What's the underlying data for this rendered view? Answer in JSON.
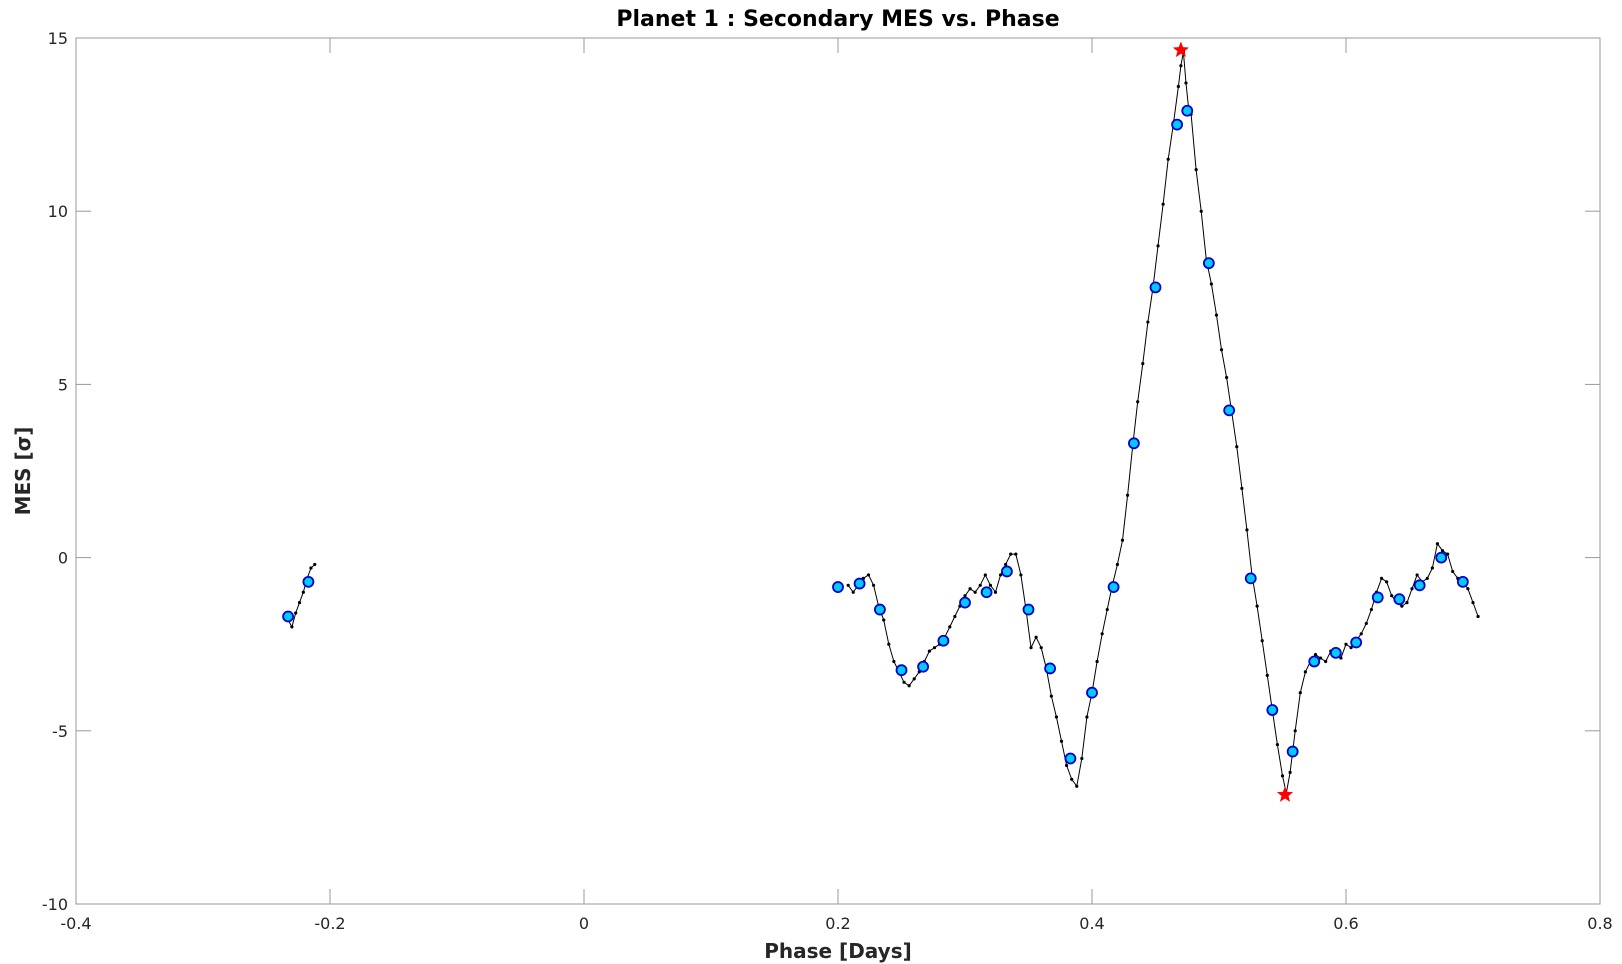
{
  "chart_data": {
    "type": "scatter",
    "title": "Planet 1 : Secondary MES vs. Phase",
    "xlabel": "Phase [Days]",
    "ylabel": "MES [σ]",
    "xlim": [
      -0.4,
      0.8
    ],
    "ylim": [
      -10,
      15
    ],
    "x_ticks": [
      -0.4,
      -0.2,
      0,
      0.2,
      0.4,
      0.6,
      0.8
    ],
    "x_tick_labels": [
      "-0.4",
      "-0.2",
      "0",
      "0.2",
      "0.4",
      "0.6",
      "0.8"
    ],
    "y_ticks": [
      -10,
      -5,
      0,
      5,
      10,
      15
    ],
    "y_tick_labels": [
      "-10",
      "-5",
      "0",
      "5",
      "10",
      "15"
    ],
    "grid": false,
    "colors": {
      "line": "#000000",
      "marker_fill": "#00ccff",
      "marker_edge": "#0000cc",
      "star": "#ff0000",
      "axes": "#999999"
    },
    "series": [
      {
        "role": "line-segment-1",
        "x": [
          -0.233,
          -0.23,
          -0.227,
          -0.224,
          -0.221,
          -0.218,
          -0.215,
          -0.212
        ],
        "y": [
          -1.8,
          -2.0,
          -1.6,
          -1.3,
          -1.0,
          -0.6,
          -0.3,
          -0.2
        ]
      },
      {
        "role": "line-segment-2",
        "x": [
          0.208,
          0.212,
          0.216,
          0.22,
          0.224,
          0.228,
          0.232,
          0.236,
          0.24,
          0.244,
          0.248,
          0.252,
          0.256,
          0.26,
          0.264,
          0.268,
          0.272,
          0.276,
          0.28,
          0.284,
          0.288,
          0.292,
          0.296,
          0.3,
          0.304,
          0.308,
          0.312,
          0.316,
          0.32,
          0.324,
          0.328,
          0.332,
          0.336,
          0.34,
          0.344,
          0.348,
          0.352,
          0.356,
          0.36,
          0.364,
          0.368,
          0.372,
          0.376,
          0.38,
          0.384,
          0.388,
          0.392,
          0.396,
          0.4,
          0.404,
          0.408,
          0.412,
          0.416,
          0.42,
          0.424,
          0.428,
          0.432,
          0.436,
          0.44,
          0.444,
          0.448,
          0.452,
          0.456,
          0.46,
          0.464,
          0.468,
          0.47,
          0.472,
          0.474,
          0.476,
          0.478,
          0.482,
          0.486,
          0.49,
          0.494,
          0.498,
          0.502,
          0.506,
          0.51,
          0.514,
          0.518,
          0.522,
          0.526,
          0.53,
          0.534,
          0.538,
          0.542,
          0.546,
          0.55,
          0.553,
          0.556,
          0.56,
          0.564,
          0.568,
          0.572,
          0.576,
          0.58,
          0.584,
          0.588,
          0.592,
          0.596,
          0.6,
          0.604,
          0.608,
          0.612,
          0.616,
          0.62,
          0.624,
          0.628,
          0.632,
          0.636,
          0.64,
          0.644,
          0.648,
          0.652,
          0.656,
          0.66,
          0.664,
          0.668,
          0.672,
          0.676,
          0.68,
          0.684,
          0.688,
          0.692,
          0.696,
          0.7,
          0.704
        ],
        "y": [
          -0.8,
          -1.0,
          -0.8,
          -0.6,
          -0.5,
          -0.8,
          -1.4,
          -1.8,
          -2.5,
          -3.0,
          -3.3,
          -3.6,
          -3.7,
          -3.5,
          -3.3,
          -3.0,
          -2.7,
          -2.6,
          -2.5,
          -2.3,
          -2.0,
          -1.7,
          -1.4,
          -1.1,
          -0.9,
          -1.0,
          -0.8,
          -0.5,
          -0.8,
          -1.0,
          -0.5,
          -0.2,
          0.1,
          0.1,
          -0.5,
          -1.5,
          -2.6,
          -2.3,
          -2.6,
          -3.2,
          -4.0,
          -4.6,
          -5.3,
          -6.0,
          -6.4,
          -6.6,
          -5.8,
          -4.6,
          -3.9,
          -3.0,
          -2.2,
          -1.5,
          -0.8,
          -0.2,
          0.5,
          1.8,
          3.2,
          4.5,
          5.6,
          6.8,
          7.8,
          9.0,
          10.2,
          11.5,
          12.5,
          13.6,
          14.2,
          14.6,
          13.7,
          13.0,
          12.8,
          11.2,
          10.0,
          8.6,
          7.9,
          7.0,
          6.0,
          5.2,
          4.2,
          3.2,
          2.0,
          0.8,
          -0.5,
          -1.4,
          -2.4,
          -3.4,
          -4.4,
          -5.4,
          -6.3,
          -6.8,
          -6.2,
          -5.0,
          -3.9,
          -3.3,
          -3.0,
          -2.8,
          -2.9,
          -3.0,
          -2.7,
          -2.8,
          -2.9,
          -2.5,
          -2.6,
          -2.4,
          -2.2,
          -1.9,
          -1.5,
          -1.0,
          -0.6,
          -0.7,
          -1.1,
          -1.3,
          -1.4,
          -1.3,
          -0.9,
          -0.5,
          -0.7,
          -0.6,
          -0.3,
          0.4,
          0.2,
          0.1,
          -0.4,
          -0.6,
          -0.7,
          -0.9,
          -1.3,
          -1.7
        ]
      },
      {
        "role": "cyan-markers",
        "x": [
          -0.233,
          -0.217,
          0.2,
          0.217,
          0.233,
          0.25,
          0.267,
          0.283,
          0.3,
          0.317,
          0.333,
          0.35,
          0.367,
          0.383,
          0.4,
          0.417,
          0.433,
          0.45,
          0.467,
          0.475,
          0.492,
          0.508,
          0.525,
          0.542,
          0.558,
          0.575,
          0.592,
          0.608,
          0.625,
          0.642,
          0.658,
          0.675,
          0.692
        ],
        "y": [
          -1.7,
          -0.7,
          -0.85,
          -0.75,
          -1.5,
          -3.25,
          -3.15,
          -2.4,
          -1.3,
          -1.0,
          -0.4,
          -1.5,
          -3.2,
          -5.8,
          -3.9,
          -0.85,
          3.3,
          7.8,
          12.5,
          12.9,
          8.5,
          4.25,
          -0.6,
          -4.4,
          -5.6,
          -3.0,
          -2.75,
          -2.45,
          -1.15,
          -1.2,
          -0.8,
          0.0,
          -0.7
        ]
      },
      {
        "role": "red-stars",
        "x": [
          0.47,
          0.552
        ],
        "y": [
          14.65,
          -6.85
        ]
      }
    ]
  }
}
